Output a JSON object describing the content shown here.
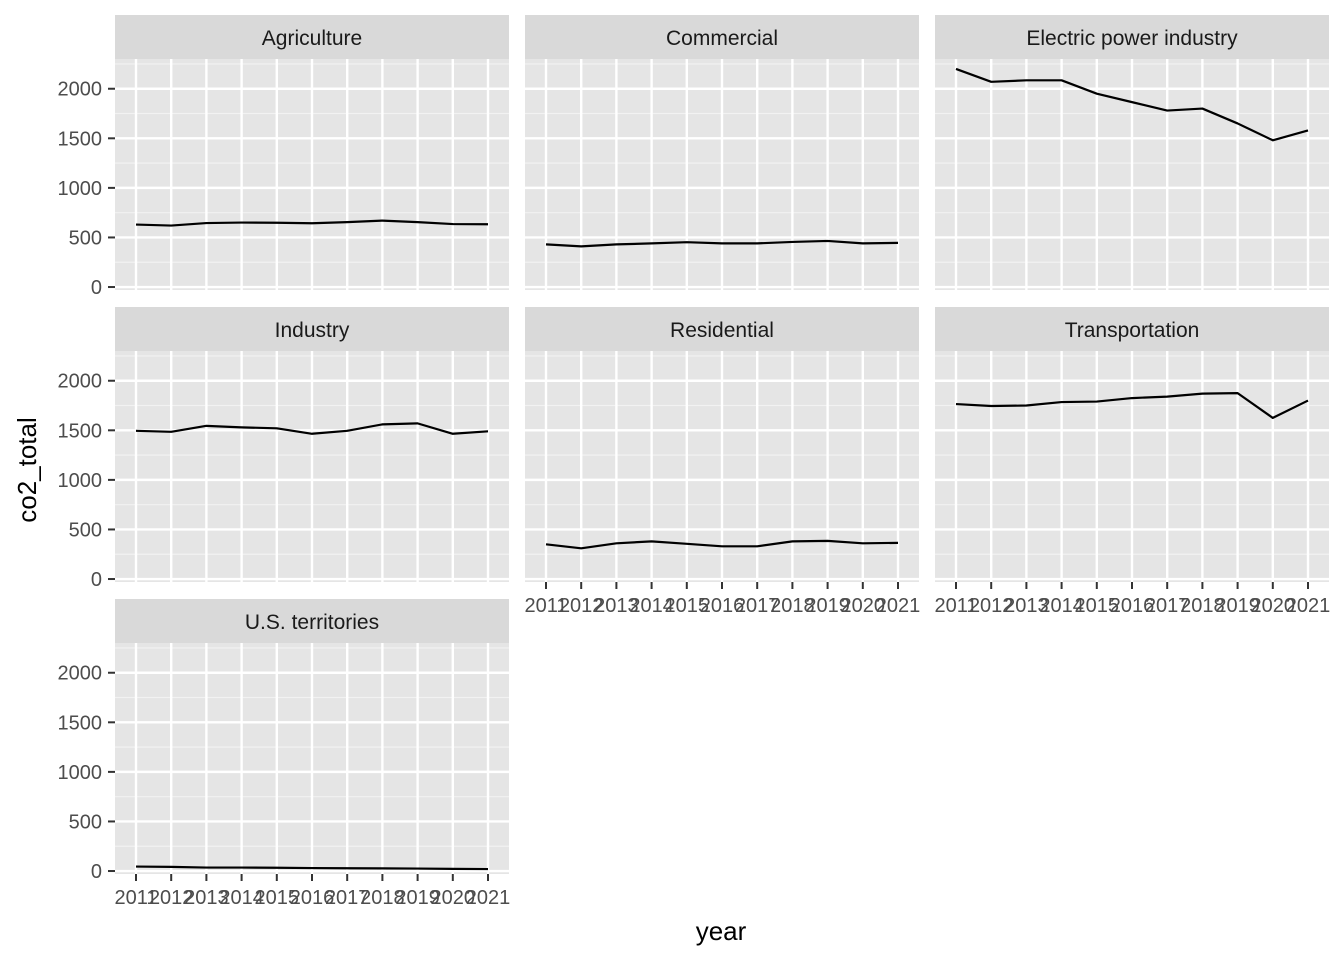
{
  "chart_data": {
    "type": "line",
    "facet_layout": "wrap",
    "ncol": 3,
    "xlabel": "year",
    "ylabel": "co2_total",
    "x": [
      2011,
      2012,
      2013,
      2014,
      2015,
      2016,
      2017,
      2018,
      2019,
      2020,
      2021
    ],
    "x_tick_labels": [
      "2011",
      "2012",
      "2013",
      "2014",
      "2015",
      "2016",
      "2017",
      "2018",
      "2019",
      "2020",
      "2021"
    ],
    "ylim": [
      -30,
      2300
    ],
    "y_ticks": [
      0,
      500,
      1000,
      1500,
      2000
    ],
    "y_tick_labels": [
      "0",
      "500",
      "1000",
      "1500",
      "2000"
    ],
    "grid": true,
    "line_color": "#000000",
    "panel_background": "#e5e5e5",
    "strip_background": "#d9d9d9",
    "series": [
      {
        "name": "Agriculture",
        "values": [
          630,
          620,
          645,
          650,
          648,
          643,
          655,
          670,
          655,
          635,
          633
        ]
      },
      {
        "name": "Commercial",
        "values": [
          430,
          410,
          430,
          440,
          452,
          440,
          440,
          455,
          465,
          440,
          445
        ]
      },
      {
        "name": "Electric power industry",
        "values": [
          2200,
          2070,
          2085,
          2085,
          1950,
          1865,
          1780,
          1800,
          1650,
          1480,
          1580
        ]
      },
      {
        "name": "Industry",
        "values": [
          1495,
          1485,
          1545,
          1530,
          1520,
          1465,
          1495,
          1560,
          1570,
          1465,
          1490
        ]
      },
      {
        "name": "Residential",
        "values": [
          350,
          310,
          360,
          380,
          355,
          330,
          330,
          380,
          385,
          360,
          365
        ]
      },
      {
        "name": "Transportation",
        "values": [
          1765,
          1745,
          1750,
          1785,
          1790,
          1825,
          1840,
          1870,
          1875,
          1625,
          1800
        ]
      },
      {
        "name": "U.S. territories",
        "values": [
          45,
          42,
          35,
          35,
          33,
          30,
          28,
          27,
          25,
          22,
          20
        ]
      }
    ]
  }
}
